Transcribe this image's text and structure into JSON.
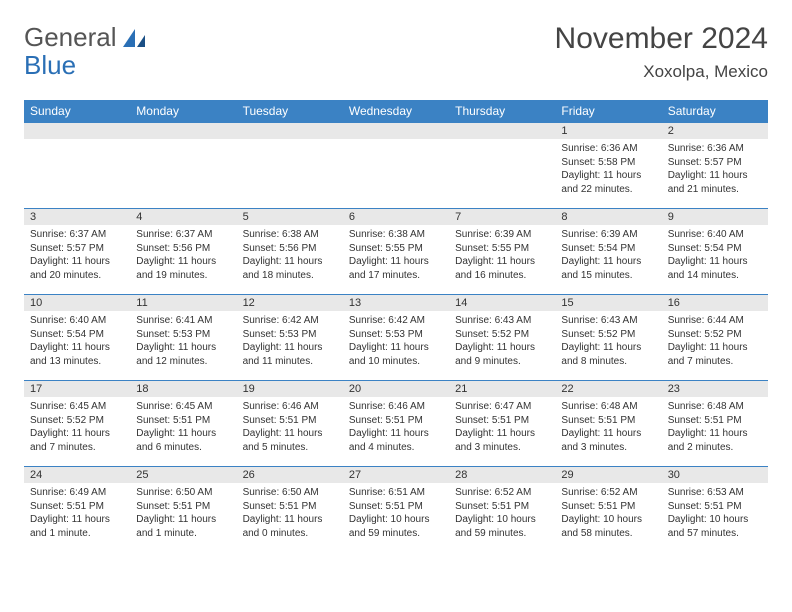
{
  "logo": {
    "word1": "General",
    "word2": "Blue"
  },
  "title": "November 2024",
  "location": "Xoxolpa, Mexico",
  "colors": {
    "header_bg": "#3b82c4",
    "header_text": "#ffffff",
    "daynum_bg": "#e8e8e8",
    "cell_border": "#3b82c4",
    "logo_gray": "#555555",
    "logo_blue": "#2a6fb5"
  },
  "weekdays": [
    "Sunday",
    "Monday",
    "Tuesday",
    "Wednesday",
    "Thursday",
    "Friday",
    "Saturday"
  ],
  "weeks": [
    [
      {
        "day": "",
        "sunrise": "",
        "sunset": "",
        "daylight": ""
      },
      {
        "day": "",
        "sunrise": "",
        "sunset": "",
        "daylight": ""
      },
      {
        "day": "",
        "sunrise": "",
        "sunset": "",
        "daylight": ""
      },
      {
        "day": "",
        "sunrise": "",
        "sunset": "",
        "daylight": ""
      },
      {
        "day": "",
        "sunrise": "",
        "sunset": "",
        "daylight": ""
      },
      {
        "day": "1",
        "sunrise": "Sunrise: 6:36 AM",
        "sunset": "Sunset: 5:58 PM",
        "daylight": "Daylight: 11 hours and 22 minutes."
      },
      {
        "day": "2",
        "sunrise": "Sunrise: 6:36 AM",
        "sunset": "Sunset: 5:57 PM",
        "daylight": "Daylight: 11 hours and 21 minutes."
      }
    ],
    [
      {
        "day": "3",
        "sunrise": "Sunrise: 6:37 AM",
        "sunset": "Sunset: 5:57 PM",
        "daylight": "Daylight: 11 hours and 20 minutes."
      },
      {
        "day": "4",
        "sunrise": "Sunrise: 6:37 AM",
        "sunset": "Sunset: 5:56 PM",
        "daylight": "Daylight: 11 hours and 19 minutes."
      },
      {
        "day": "5",
        "sunrise": "Sunrise: 6:38 AM",
        "sunset": "Sunset: 5:56 PM",
        "daylight": "Daylight: 11 hours and 18 minutes."
      },
      {
        "day": "6",
        "sunrise": "Sunrise: 6:38 AM",
        "sunset": "Sunset: 5:55 PM",
        "daylight": "Daylight: 11 hours and 17 minutes."
      },
      {
        "day": "7",
        "sunrise": "Sunrise: 6:39 AM",
        "sunset": "Sunset: 5:55 PM",
        "daylight": "Daylight: 11 hours and 16 minutes."
      },
      {
        "day": "8",
        "sunrise": "Sunrise: 6:39 AM",
        "sunset": "Sunset: 5:54 PM",
        "daylight": "Daylight: 11 hours and 15 minutes."
      },
      {
        "day": "9",
        "sunrise": "Sunrise: 6:40 AM",
        "sunset": "Sunset: 5:54 PM",
        "daylight": "Daylight: 11 hours and 14 minutes."
      }
    ],
    [
      {
        "day": "10",
        "sunrise": "Sunrise: 6:40 AM",
        "sunset": "Sunset: 5:54 PM",
        "daylight": "Daylight: 11 hours and 13 minutes."
      },
      {
        "day": "11",
        "sunrise": "Sunrise: 6:41 AM",
        "sunset": "Sunset: 5:53 PM",
        "daylight": "Daylight: 11 hours and 12 minutes."
      },
      {
        "day": "12",
        "sunrise": "Sunrise: 6:42 AM",
        "sunset": "Sunset: 5:53 PM",
        "daylight": "Daylight: 11 hours and 11 minutes."
      },
      {
        "day": "13",
        "sunrise": "Sunrise: 6:42 AM",
        "sunset": "Sunset: 5:53 PM",
        "daylight": "Daylight: 11 hours and 10 minutes."
      },
      {
        "day": "14",
        "sunrise": "Sunrise: 6:43 AM",
        "sunset": "Sunset: 5:52 PM",
        "daylight": "Daylight: 11 hours and 9 minutes."
      },
      {
        "day": "15",
        "sunrise": "Sunrise: 6:43 AM",
        "sunset": "Sunset: 5:52 PM",
        "daylight": "Daylight: 11 hours and 8 minutes."
      },
      {
        "day": "16",
        "sunrise": "Sunrise: 6:44 AM",
        "sunset": "Sunset: 5:52 PM",
        "daylight": "Daylight: 11 hours and 7 minutes."
      }
    ],
    [
      {
        "day": "17",
        "sunrise": "Sunrise: 6:45 AM",
        "sunset": "Sunset: 5:52 PM",
        "daylight": "Daylight: 11 hours and 7 minutes."
      },
      {
        "day": "18",
        "sunrise": "Sunrise: 6:45 AM",
        "sunset": "Sunset: 5:51 PM",
        "daylight": "Daylight: 11 hours and 6 minutes."
      },
      {
        "day": "19",
        "sunrise": "Sunrise: 6:46 AM",
        "sunset": "Sunset: 5:51 PM",
        "daylight": "Daylight: 11 hours and 5 minutes."
      },
      {
        "day": "20",
        "sunrise": "Sunrise: 6:46 AM",
        "sunset": "Sunset: 5:51 PM",
        "daylight": "Daylight: 11 hours and 4 minutes."
      },
      {
        "day": "21",
        "sunrise": "Sunrise: 6:47 AM",
        "sunset": "Sunset: 5:51 PM",
        "daylight": "Daylight: 11 hours and 3 minutes."
      },
      {
        "day": "22",
        "sunrise": "Sunrise: 6:48 AM",
        "sunset": "Sunset: 5:51 PM",
        "daylight": "Daylight: 11 hours and 3 minutes."
      },
      {
        "day": "23",
        "sunrise": "Sunrise: 6:48 AM",
        "sunset": "Sunset: 5:51 PM",
        "daylight": "Daylight: 11 hours and 2 minutes."
      }
    ],
    [
      {
        "day": "24",
        "sunrise": "Sunrise: 6:49 AM",
        "sunset": "Sunset: 5:51 PM",
        "daylight": "Daylight: 11 hours and 1 minute."
      },
      {
        "day": "25",
        "sunrise": "Sunrise: 6:50 AM",
        "sunset": "Sunset: 5:51 PM",
        "daylight": "Daylight: 11 hours and 1 minute."
      },
      {
        "day": "26",
        "sunrise": "Sunrise: 6:50 AM",
        "sunset": "Sunset: 5:51 PM",
        "daylight": "Daylight: 11 hours and 0 minutes."
      },
      {
        "day": "27",
        "sunrise": "Sunrise: 6:51 AM",
        "sunset": "Sunset: 5:51 PM",
        "daylight": "Daylight: 10 hours and 59 minutes."
      },
      {
        "day": "28",
        "sunrise": "Sunrise: 6:52 AM",
        "sunset": "Sunset: 5:51 PM",
        "daylight": "Daylight: 10 hours and 59 minutes."
      },
      {
        "day": "29",
        "sunrise": "Sunrise: 6:52 AM",
        "sunset": "Sunset: 5:51 PM",
        "daylight": "Daylight: 10 hours and 58 minutes."
      },
      {
        "day": "30",
        "sunrise": "Sunrise: 6:53 AM",
        "sunset": "Sunset: 5:51 PM",
        "daylight": "Daylight: 10 hours and 57 minutes."
      }
    ]
  ]
}
